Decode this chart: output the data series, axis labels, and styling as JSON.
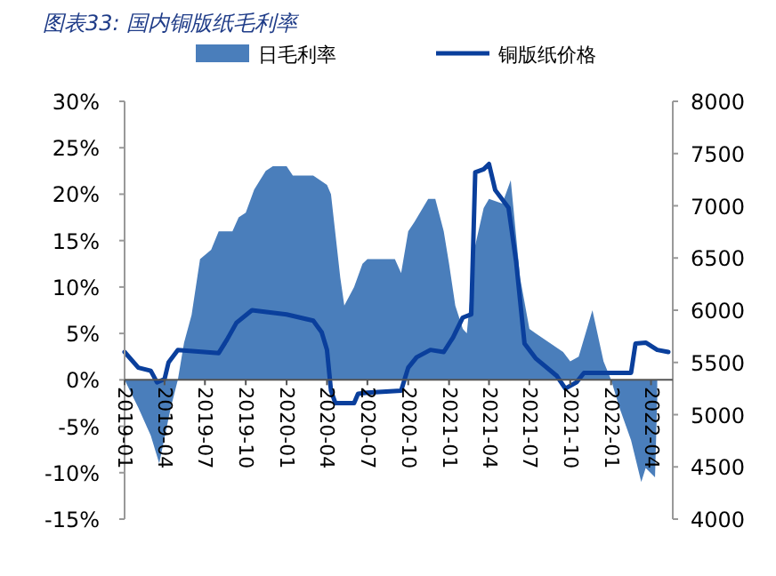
{
  "chart_data": {
    "type": "line",
    "title": "图表33: 国内铜版纸毛利率",
    "xlim": [
      "2019-01-01",
      "2022-05-20"
    ],
    "xticks": [
      "2019-01",
      "2019-04",
      "2019-07",
      "2019-10",
      "2020-01",
      "2020-04",
      "2020-07",
      "2020-10",
      "2021-01",
      "2021-04",
      "2021-07",
      "2021-10",
      "2022-01",
      "2022-04"
    ],
    "ylim": [
      -15,
      30
    ],
    "yticks": [
      {
        "value": -15,
        "label": "-15%"
      },
      {
        "value": -10,
        "label": "-10%"
      },
      {
        "value": -5,
        "label": "-5%"
      },
      {
        "value": 0,
        "label": "0%"
      },
      {
        "value": 5,
        "label": "5%"
      },
      {
        "value": 10,
        "label": "10%"
      },
      {
        "value": 15,
        "label": "15%"
      },
      {
        "value": 20,
        "label": "20%"
      },
      {
        "value": 25,
        "label": "25%"
      },
      {
        "value": 30,
        "label": "30%"
      }
    ],
    "y2lim": [
      4000,
      8000
    ],
    "y2ticks": [
      4000,
      4500,
      5000,
      5500,
      6000,
      6500,
      7000,
      7500,
      8000
    ],
    "legend": "top",
    "grid": false,
    "series": [
      {
        "name": "日毛利率",
        "type": "area",
        "color": "#4a7ebb",
        "axis": "y",
        "x": [
          "2019-01-01",
          "2019-02-01",
          "2019-03-01",
          "2019-03-20",
          "2019-04-15",
          "2019-05-01",
          "2019-05-15",
          "2019-06-01",
          "2019-06-20",
          "2019-07-15",
          "2019-08-01",
          "2019-09-01",
          "2019-09-15",
          "2019-10-01",
          "2019-10-20",
          "2019-11-15",
          "2019-12-01",
          "2020-01-01",
          "2020-01-15",
          "2020-03-01",
          "2020-04-01",
          "2020-04-10",
          "2020-05-01",
          "2020-05-10",
          "2020-06-01",
          "2020-06-20",
          "2020-07-01",
          "2020-08-01",
          "2020-09-01",
          "2020-09-15",
          "2020-10-01",
          "2020-10-15",
          "2020-11-15",
          "2020-12-01",
          "2020-12-20",
          "2021-01-01",
          "2021-01-15",
          "2021-02-01",
          "2021-02-10",
          "2021-03-01",
          "2021-03-20",
          "2021-04-01",
          "2021-05-01",
          "2021-05-20",
          "2021-06-10",
          "2021-07-01",
          "2021-07-15",
          "2021-08-15",
          "2021-09-15",
          "2021-10-01",
          "2021-10-20",
          "2021-11-20",
          "2021-12-15",
          "2022-01-01",
          "2022-01-20",
          "2022-02-15",
          "2022-03-10",
          "2022-03-20",
          "2022-04-10",
          "2022-04-15"
        ],
        "values": [
          0,
          -3,
          -6,
          -9,
          -3,
          0,
          4,
          7,
          13,
          14,
          16,
          16,
          17.5,
          18,
          20.5,
          22.5,
          23,
          23,
          22,
          22,
          21,
          20,
          11,
          8,
          10,
          12.5,
          13,
          13,
          13,
          11.5,
          16,
          17,
          19.5,
          19.5,
          16,
          12.5,
          8,
          5.5,
          5,
          14.5,
          18.5,
          19.5,
          19,
          21.5,
          11,
          5.5,
          5,
          4,
          3,
          2,
          2.5,
          7.5,
          2,
          0,
          -3,
          -6.5,
          -11,
          -9.5,
          -10.5,
          -2
        ]
      },
      {
        "name": "铜版纸价格",
        "color": "#0a3f9c",
        "axis": "y2",
        "x": [
          "2019-01-01",
          "2019-02-01",
          "2019-03-01",
          "2019-03-15",
          "2019-04-01",
          "2019-04-10",
          "2019-05-01",
          "2019-08-01",
          "2019-08-20",
          "2019-09-10",
          "2019-10-15",
          "2020-01-01",
          "2020-03-01",
          "2020-03-20",
          "2020-04-01",
          "2020-04-10",
          "2020-04-20",
          "2020-06-01",
          "2020-06-10",
          "2020-07-01",
          "2020-09-15",
          "2020-10-01",
          "2020-10-20",
          "2020-11-20",
          "2020-12-20",
          "2021-01-10",
          "2021-02-01",
          "2021-02-20",
          "2021-03-01",
          "2021-03-20",
          "2021-04-01",
          "2021-04-15",
          "2021-05-15",
          "2021-06-01",
          "2021-06-20",
          "2021-07-15",
          "2021-09-01",
          "2021-09-20",
          "2021-10-15",
          "2021-11-01",
          "2021-12-01",
          "2022-02-15",
          "2022-02-25",
          "2022-03-20",
          "2022-04-15",
          "2022-05-10"
        ],
        "values": [
          5600,
          5450,
          5420,
          5310,
          5340,
          5500,
          5620,
          5590,
          5720,
          5880,
          6000,
          5960,
          5900,
          5790,
          5620,
          5230,
          5110,
          5110,
          5200,
          5210,
          5230,
          5450,
          5550,
          5620,
          5600,
          5740,
          5930,
          5960,
          7320,
          7350,
          7400,
          7150,
          6980,
          6470,
          5680,
          5540,
          5370,
          5250,
          5310,
          5400,
          5400,
          5400,
          5680,
          5690,
          5620,
          5600
        ]
      }
    ]
  }
}
